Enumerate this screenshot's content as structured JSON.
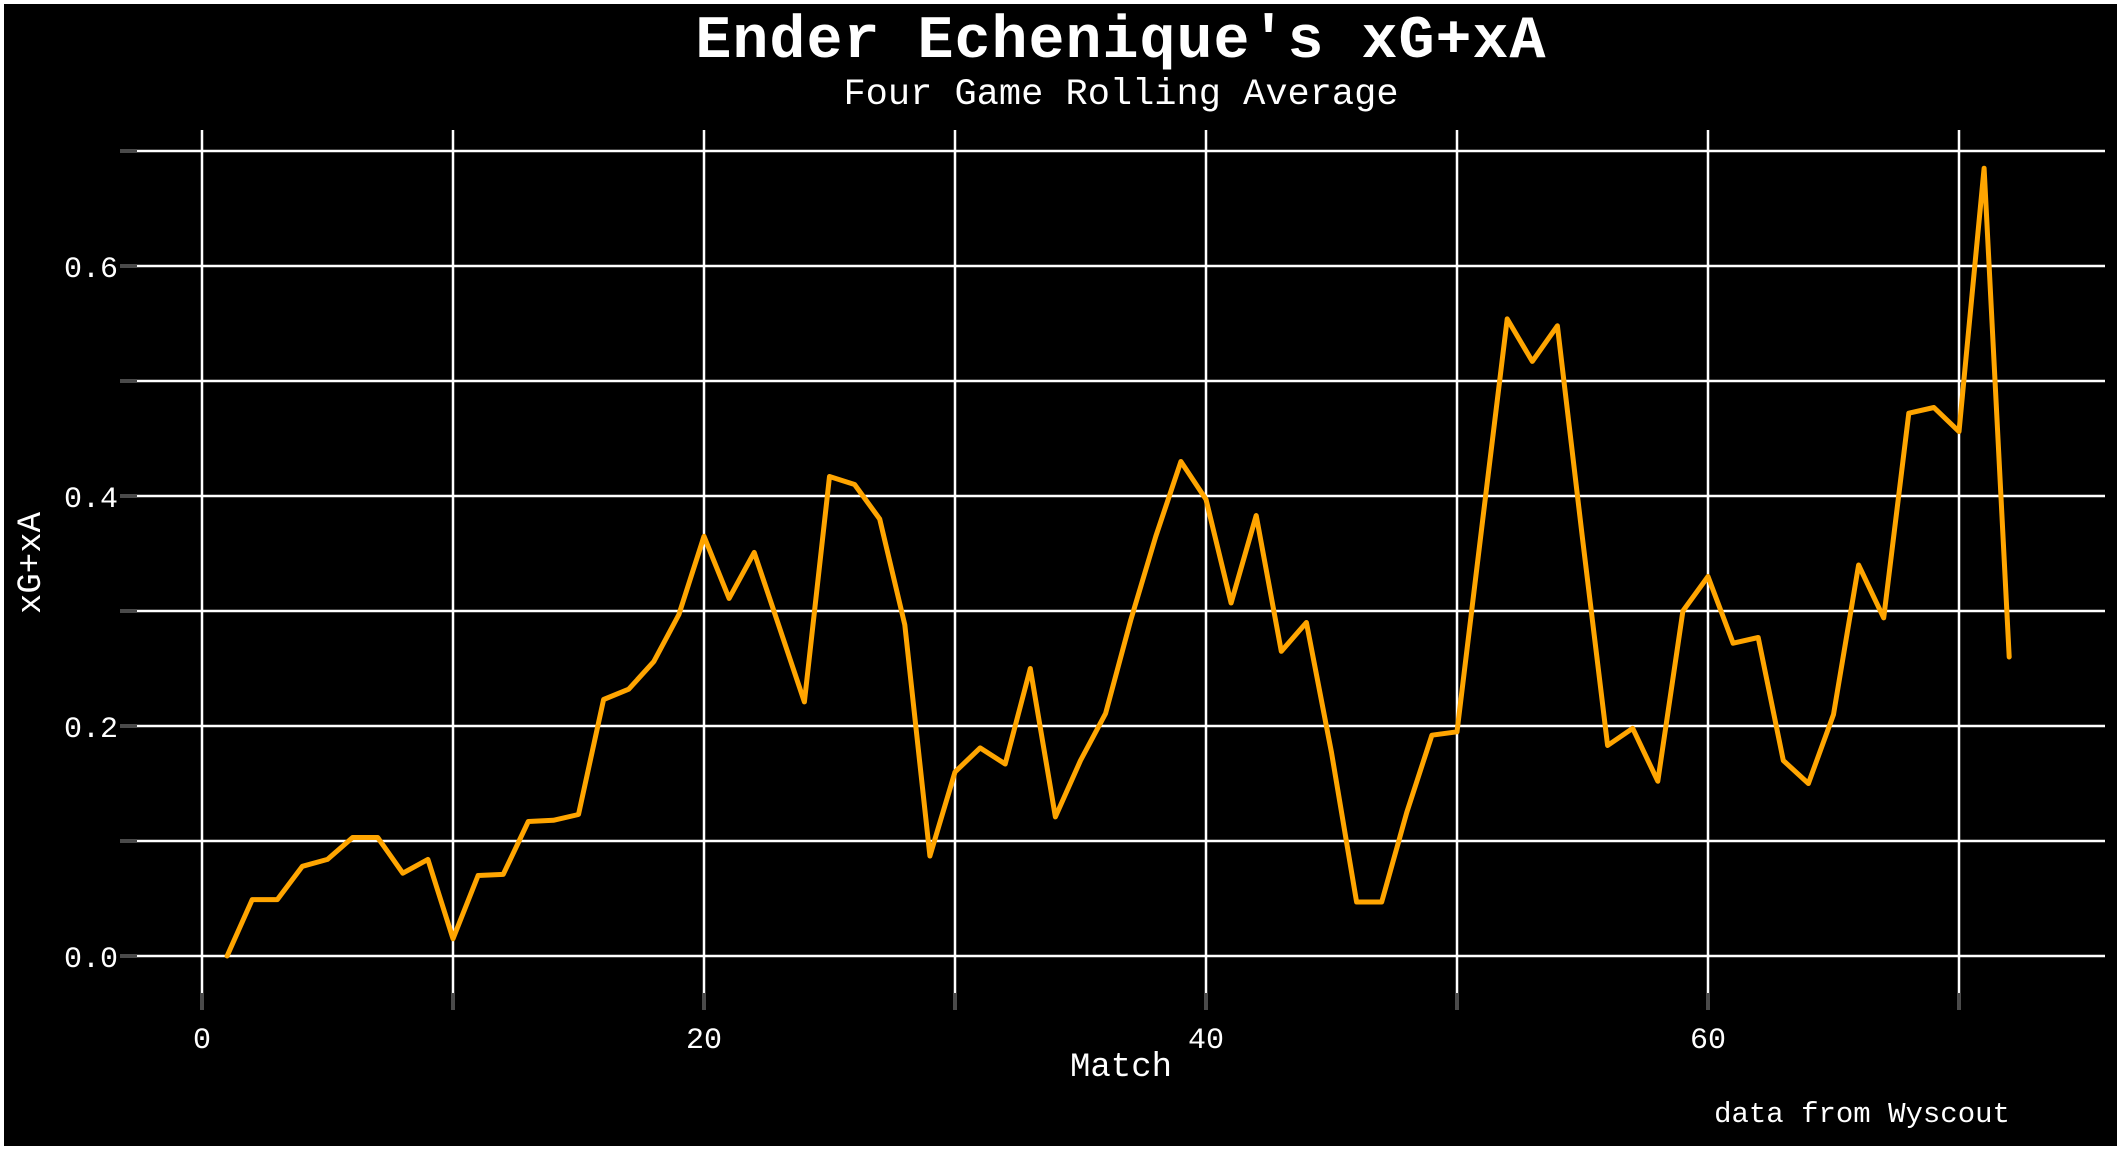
{
  "chart_data": {
    "type": "line",
    "title": "Ender Echenique's xG+xA",
    "subtitle": "Four Game Rolling Average",
    "xlabel": "Match",
    "ylabel": "xG+xA",
    "annotation": "data from Wyscout",
    "grid": true,
    "legend_position": "none",
    "background_color": "#000000",
    "frame_color": "#FFFFFF",
    "line_color": "#FFA500",
    "grid_color": "#FFFFFF",
    "text_color": "#FFFFFF",
    "annotation_color": "#C8C8C8",
    "tick_mark_color": "#4A4A4A",
    "xlim": [
      -2.6,
      75.8
    ],
    "ylim": [
      -0.032,
      0.718
    ],
    "x_ticks": [
      0,
      20,
      40,
      60
    ],
    "x_tick_labels": [
      "0",
      "20",
      "40",
      "60"
    ],
    "x_gridlines": [
      0,
      10,
      20,
      30,
      40,
      50,
      60,
      70
    ],
    "y_ticks": [
      0.0,
      0.2,
      0.4,
      0.6
    ],
    "y_tick_labels": [
      "0.0",
      "0.2",
      "0.4",
      "0.6"
    ],
    "y_gridlines": [
      0.0,
      0.1,
      0.2,
      0.3,
      0.4,
      0.5,
      0.6,
      0.7
    ],
    "x": [
      1,
      2,
      3,
      4,
      5,
      6,
      7,
      8,
      9,
      10,
      11,
      12,
      13,
      14,
      15,
      16,
      17,
      18,
      19,
      20,
      21,
      22,
      23,
      24,
      25,
      26,
      27,
      28,
      29,
      30,
      31,
      32,
      33,
      34,
      35,
      36,
      37,
      38,
      39,
      40,
      41,
      42,
      43,
      44,
      45,
      46,
      47,
      48,
      49,
      50,
      51,
      52,
      53,
      54,
      55,
      56,
      57,
      58,
      59,
      60,
      61,
      62,
      63,
      64,
      65,
      66,
      67,
      68,
      69,
      70,
      71,
      72
    ],
    "values": [
      0.0,
      0.049,
      0.049,
      0.078,
      0.084,
      0.103,
      0.103,
      0.072,
      0.084,
      0.015,
      0.07,
      0.071,
      0.117,
      0.118,
      0.123,
      0.223,
      0.232,
      0.256,
      0.297,
      0.365,
      0.311,
      0.351,
      0.286,
      0.221,
      0.417,
      0.41,
      0.38,
      0.288,
      0.087,
      0.16,
      0.181,
      0.167,
      0.25,
      0.121,
      0.17,
      0.211,
      0.292,
      0.365,
      0.43,
      0.397,
      0.307,
      0.383,
      0.265,
      0.29,
      0.177,
      0.047,
      0.047,
      0.125,
      0.192,
      0.195,
      0.375,
      0.554,
      0.517,
      0.548,
      0.363,
      0.183,
      0.198,
      0.152,
      0.3,
      0.33,
      0.272,
      0.277,
      0.17,
      0.15,
      0.21,
      0.34,
      0.294,
      0.472,
      0.477,
      0.456,
      0.685,
      0.26
    ]
  }
}
